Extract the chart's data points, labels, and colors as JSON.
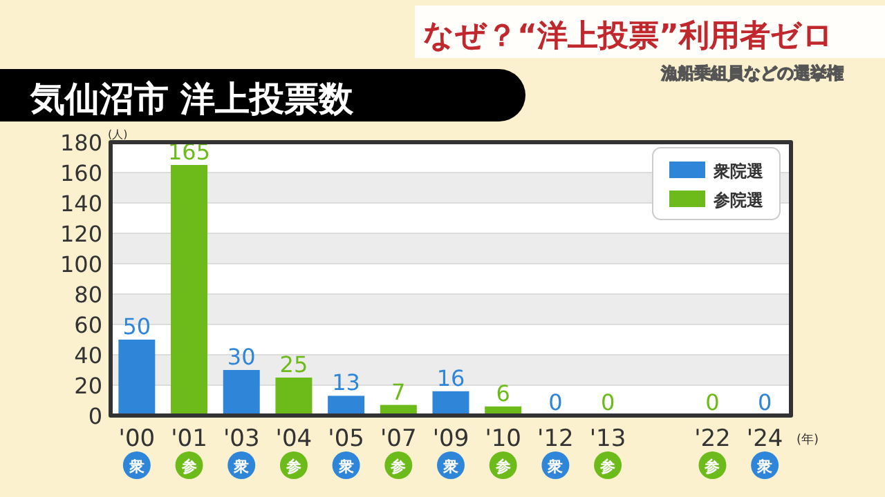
{
  "chart_data": {
    "type": "bar",
    "title": "気仙沼市 洋上投票数",
    "annotations": [
      "なぜ？“洋上投票”利用者ゼロ",
      "漁船乗組員などの選挙権",
      "衆",
      "参",
      "衆",
      "参",
      "衆",
      "参",
      "衆",
      "参",
      "衆",
      "参",
      "参",
      "衆"
    ],
    "ylabel": "(人)",
    "xlabel": "(年)",
    "categories": [
      "'00",
      "'01",
      "'03",
      "'04",
      "'05",
      "'07",
      "'09",
      "'10",
      "'12",
      "'13",
      null,
      "'22",
      "'24"
    ],
    "series": [
      {
        "name": "衆院選",
        "color": "#2f86d8",
        "values": [
          50,
          null,
          30,
          null,
          13,
          null,
          16,
          null,
          0,
          null,
          null,
          null,
          0
        ]
      },
      {
        "name": "参院選",
        "color": "#6cbb1a",
        "values": [
          null,
          165,
          null,
          25,
          null,
          7,
          null,
          6,
          null,
          0,
          null,
          0,
          null
        ]
      }
    ],
    "ylim": [
      0,
      180
    ],
    "yticks": [
      0,
      20,
      40,
      60,
      80,
      100,
      120,
      140,
      160,
      180
    ],
    "grid": "y",
    "legend": "top right",
    "data_labels": true
  }
}
